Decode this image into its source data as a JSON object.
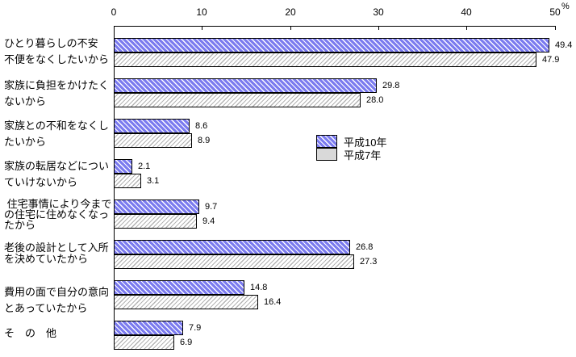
{
  "chart_data": {
    "type": "bar",
    "orientation": "horizontal",
    "title": "",
    "unit_label": "%",
    "x_ticks": [
      0,
      10,
      20,
      30,
      40,
      50
    ],
    "xlim": [
      0,
      50
    ],
    "grid": false,
    "legend_position": "inside-right-upper",
    "categories": [
      {
        "lines": [
          "ひとり暮らしの不安",
          "不便をなくしたいから"
        ]
      },
      {
        "lines": [
          "家族に負担をかけたく",
          "ないから"
        ]
      },
      {
        "lines": [
          "家族との不和をなくし",
          "たいから"
        ]
      },
      {
        "lines": [
          "家族の転居などについ",
          "ていけないから"
        ]
      },
      {
        "lines": [
          " 住宅事情により今まで",
          "の住宅に住めなくなっ",
          "たから"
        ]
      },
      {
        "lines": [
          "老後の設計として入所",
          "を決めていたから"
        ]
      },
      {
        "lines": [
          "費用の面で自分の意向",
          "とあっていたから"
        ]
      },
      {
        "lines": [
          "そ　の　他"
        ]
      }
    ],
    "series": [
      {
        "name": "平成10年",
        "values": [
          49.4,
          29.8,
          8.6,
          2.1,
          9.7,
          26.8,
          14.8,
          7.9
        ]
      },
      {
        "name": "平成7年",
        "values": [
          47.9,
          28.0,
          8.9,
          3.1,
          9.4,
          27.3,
          16.4,
          6.9
        ]
      }
    ],
    "colors": {
      "series_h10_base": "#7b7bef",
      "series_h10_hatch": "#ffffff",
      "series_h7_base": "#ffffff",
      "series_h7_hatch": "#b4b4b4",
      "legend_h7_swatch": "#d9d9d9",
      "border": "#000000"
    }
  }
}
